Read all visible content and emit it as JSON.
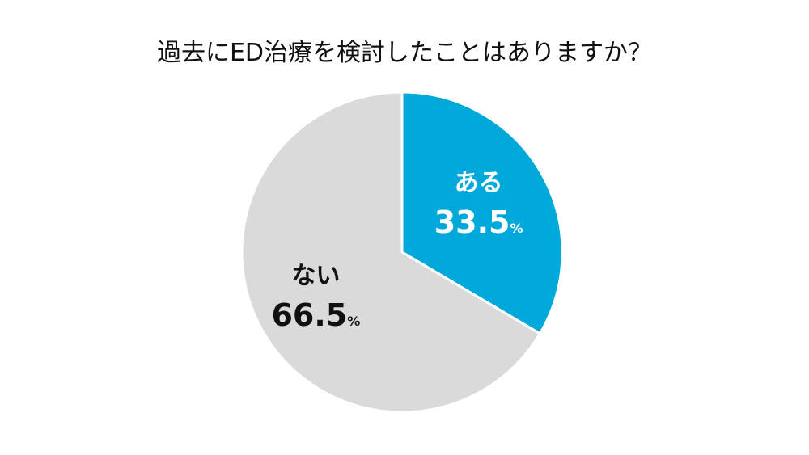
{
  "chart_data": {
    "type": "pie",
    "title": "過去にED治療を検討したことはありますか？",
    "slices": [
      {
        "label": "ある",
        "value": 33.5,
        "display": "33.5",
        "unit": "%",
        "color": "#00A9DA",
        "text_color": "#ffffff"
      },
      {
        "label": "ない",
        "value": 66.5,
        "display": "66.5",
        "unit": "%",
        "color": "#DADADA",
        "text_color": "#111111"
      }
    ],
    "start": "12 o'clock",
    "direction": "clockwise"
  }
}
